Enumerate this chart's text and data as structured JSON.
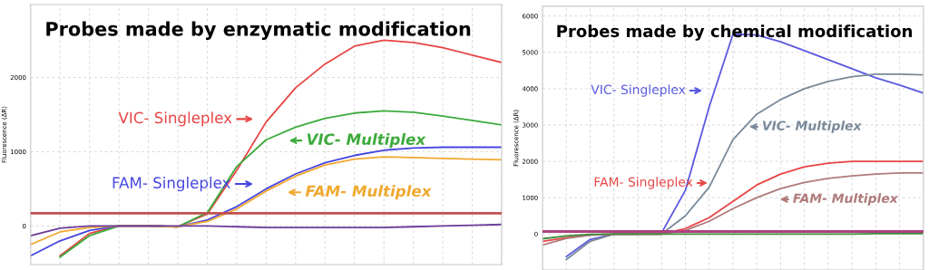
{
  "chart_data": [
    {
      "type": "line",
      "title": "Probes made by enzymatic modification",
      "ylabel": "Fluorescence (ΔR)",
      "categories": [
        null,
        null,
        null,
        null,
        null,
        null,
        null,
        null,
        null,
        null,
        null,
        null,
        null,
        null,
        null,
        null,
        null
      ],
      "ylim": [
        -520,
        2980
      ],
      "yticks": [
        0,
        1000,
        2000
      ],
      "grid": true,
      "legend": "center",
      "marker": "none",
      "line_style": "solid",
      "series": [
        {
          "name": "VIC- Singleplex",
          "color": "#e84545",
          "values": [
            null,
            -400,
            -100,
            0,
            0,
            -10,
            160,
            750,
            1400,
            1860,
            2180,
            2420,
            2500,
            2470,
            2400,
            2300,
            2200
          ]
        },
        {
          "name": "VIC- Multiplex",
          "color": "#3caa3c",
          "values": [
            null,
            -420,
            -130,
            0,
            0,
            -10,
            180,
            800,
            1160,
            1330,
            1450,
            1520,
            1550,
            1530,
            1480,
            1420,
            1360
          ]
        },
        {
          "name": "FAM- Singleplex",
          "color": "#4646e0",
          "values": [
            -400,
            -200,
            -60,
            0,
            0,
            -10,
            80,
            260,
            500,
            700,
            850,
            950,
            1020,
            1050,
            1060,
            1060,
            1060
          ]
        },
        {
          "name": "FAM- Multiplex",
          "color": "#f0a830",
          "values": [
            -250,
            -80,
            -20,
            0,
            0,
            -10,
            60,
            230,
            470,
            670,
            820,
            900,
            930,
            920,
            910,
            900,
            890
          ]
        },
        {
          "color": "#6a3d9a",
          "values": [
            -130,
            -30,
            0,
            0,
            0,
            0,
            0,
            -10,
            -20,
            -20,
            -20,
            -20,
            -20,
            -10,
            0,
            10,
            20
          ]
        }
      ],
      "ref_lines": [
        {
          "axis": "y",
          "value": 170,
          "color": "#c0504d"
        }
      ]
    },
    {
      "type": "line",
      "title": "Probes made by chemical modification",
      "ylabel": "Fluorescence (ΔR)",
      "categories": [
        null,
        null,
        null,
        null,
        null,
        null,
        null,
        null,
        null,
        null,
        null,
        null,
        null,
        null,
        null,
        null,
        null
      ],
      "ylim": [
        -990,
        6270
      ],
      "yticks": [
        0,
        1000,
        2000,
        3000,
        4000,
        5000,
        6000
      ],
      "grid": true,
      "legend": "center",
      "marker": "none",
      "line_style": "solid",
      "series": [
        {
          "name": "VIC- Singleplex",
          "color": "#5a5ae0",
          "values": [
            null,
            -620,
            -150,
            0,
            0,
            30,
            1200,
            3500,
            5500,
            5480,
            5290,
            5050,
            4800,
            4550,
            4300,
            4100,
            3880
          ]
        },
        {
          "name": "VIC- Multiplex",
          "color": "#7a8a9a",
          "values": [
            null,
            -700,
            -200,
            0,
            0,
            0,
            500,
            1290,
            2600,
            3300,
            3700,
            4000,
            4200,
            4330,
            4400,
            4400,
            4380
          ]
        },
        {
          "name": "FAM- Singleplex",
          "color": "#e84545",
          "values": [
            -200,
            -100,
            -20,
            0,
            0,
            0,
            150,
            450,
            900,
            1350,
            1650,
            1850,
            1950,
            2000,
            2000,
            2000,
            2000
          ]
        },
        {
          "name": "FAM- Multiplex",
          "color": "#b07a7a",
          "values": [
            -300,
            -120,
            -30,
            0,
            0,
            0,
            100,
            350,
            700,
            1000,
            1250,
            1420,
            1530,
            1600,
            1650,
            1680,
            1680
          ]
        },
        {
          "color": "#3c8a3c",
          "values": [
            -130,
            -50,
            -10,
            0,
            0,
            0,
            0,
            0,
            0,
            0,
            0,
            0,
            0,
            0,
            10,
            10,
            10
          ]
        }
      ],
      "ref_lines": [
        {
          "axis": "y",
          "value": 70,
          "color": "#b04080"
        }
      ]
    }
  ]
}
